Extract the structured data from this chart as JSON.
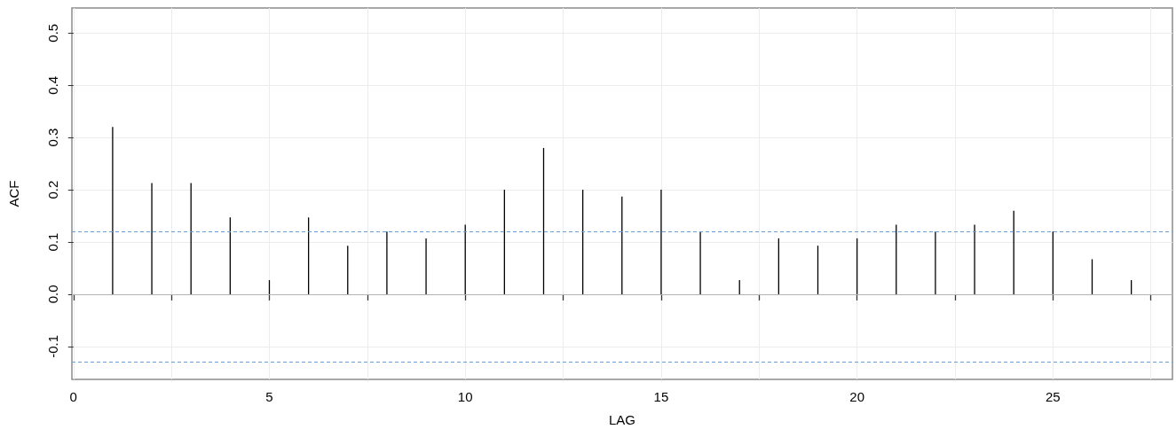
{
  "chart_data": {
    "type": "bar",
    "xlabel": "LAG",
    "ylabel": "ACF",
    "x": [
      1,
      2,
      3,
      4,
      5,
      6,
      7,
      8,
      9,
      10,
      11,
      12,
      13,
      14,
      15,
      16,
      17,
      18,
      19,
      20,
      21,
      22,
      23,
      24,
      25,
      26,
      27
    ],
    "series": [
      {
        "color": "#000000",
        "values": [
          0.32,
          0.213,
          0.213,
          0.147,
          0.027,
          0.147,
          0.093,
          0.12,
          0.107,
          0.133,
          0.2,
          0.28,
          0.2,
          0.187,
          0.2,
          0.12,
          0.027,
          0.107,
          0.093,
          0.107,
          0.133,
          0.12,
          0.133,
          0.16,
          0.12,
          0.067,
          0.027
        ]
      }
    ],
    "xlim": [
      -0.04,
      28.05
    ],
    "xticks": [
      0,
      {
        "value": 2.5,
        "label": null
      },
      5,
      {
        "value": 7.5,
        "label": null
      },
      10,
      {
        "value": 12.5,
        "label": null
      },
      15,
      {
        "value": 17.5,
        "label": null
      },
      20,
      {
        "value": 22.5,
        "label": null
      },
      25,
      {
        "value": 27.5,
        "label": null
      }
    ],
    "ylim": [
      -0.163,
      0.548
    ],
    "yticks": [
      -0.1,
      {
        "value": 0,
        "label": "0.0"
      },
      0.1,
      0.2,
      0.3,
      0.4,
      0.5
    ],
    "ref_lines": [
      {
        "axis": "y",
        "value": 0,
        "color": "#b4b4b4",
        "line_style": "solid"
      },
      {
        "axis": "y",
        "value": 0.12,
        "color": "#6a9fd4",
        "line_style": "dashed"
      },
      {
        "axis": "y",
        "value": -0.127,
        "color": "#6a9fd4",
        "line_style": "dashed"
      }
    ],
    "grid": true
  }
}
